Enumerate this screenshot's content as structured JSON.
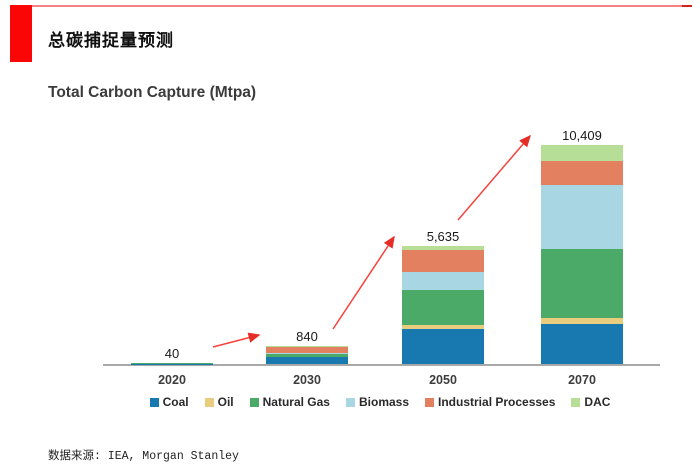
{
  "page": {
    "title_zh": "总碳捕捉量预测",
    "source_note": "数据来源: IEA, Morgan Stanley"
  },
  "chart_data": {
    "type": "bar",
    "stacked": true,
    "title": "Total Carbon Capture (Mtpa)",
    "categories": [
      "2020",
      "2030",
      "2050",
      "2070"
    ],
    "totals": [
      40,
      840,
      5635,
      10409
    ],
    "total_labels": [
      "40",
      "840",
      "5,635",
      "10,409"
    ],
    "series": [
      {
        "name": "Coal",
        "color": "#1779B0",
        "values": [
          15,
          335,
          1675,
          1899
        ]
      },
      {
        "name": "Oil",
        "color": "#E9CD7E",
        "values": [
          5,
          15,
          160,
          283
        ]
      },
      {
        "name": "Natural Gas",
        "color": "#4BAA68",
        "values": [
          10,
          120,
          1675,
          3271
        ]
      },
      {
        "name": "Biomass",
        "color": "#A9D6E3",
        "values": [
          0,
          70,
          850,
          3088
        ]
      },
      {
        "name": "Industrial Processes",
        "color": "#E2805F",
        "values": [
          10,
          285,
          1085,
          1125
        ]
      },
      {
        "name": "DAC",
        "color": "#B7DE97",
        "values": [
          0,
          15,
          190,
          743
        ]
      }
    ],
    "legend_position": "bottom",
    "grid": false,
    "ylabel": "",
    "xlabel": "",
    "ylim": [
      0,
      11000
    ],
    "annotations": "red growth arrows pointing from each bar toward the next larger bar",
    "accent_colors": {
      "arrow_red": "#f6423c",
      "title_block_red": "#fb0607",
      "axis_gray": "#a8a8a8"
    }
  }
}
